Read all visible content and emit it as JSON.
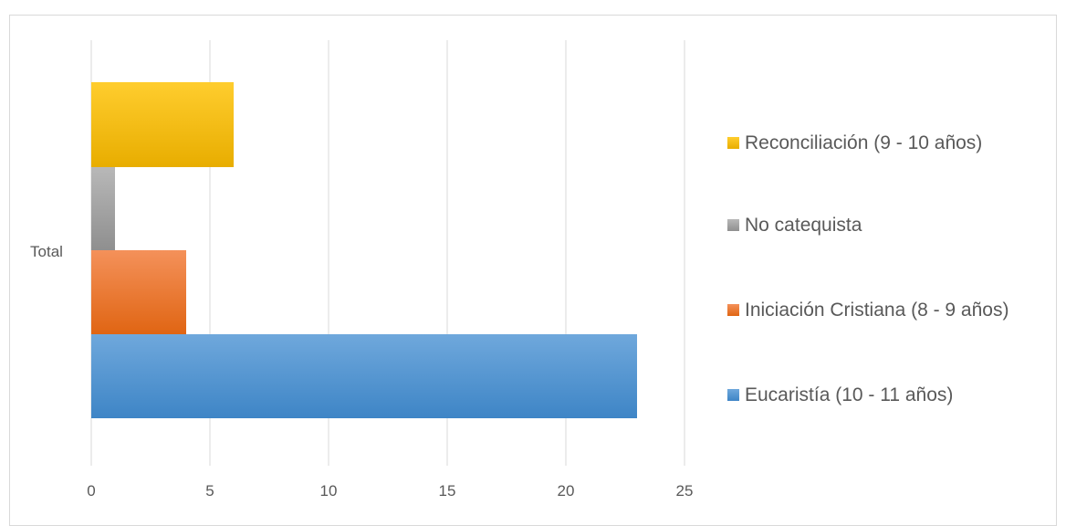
{
  "chart_data": {
    "type": "bar",
    "orientation": "horizontal",
    "categories": [
      "Total"
    ],
    "series": [
      {
        "name": "Eucaristía (10 - 11 años)",
        "values": [
          23
        ],
        "color": "#5b9bd5"
      },
      {
        "name": "Iniciación Cristiana (8 - 9 años)",
        "values": [
          4
        ],
        "color": "#ed7d31"
      },
      {
        "name": "No catequista",
        "values": [
          1
        ],
        "color": "#a5a5a5"
      },
      {
        "name": "Reconciliación (9 - 10 años)",
        "values": [
          6
        ],
        "color": "#ffc000"
      }
    ],
    "xlim": [
      0,
      25
    ],
    "xticks": [
      "0",
      "5",
      "10",
      "15",
      "20",
      "25"
    ],
    "grid": true,
    "legend_position": "right"
  }
}
